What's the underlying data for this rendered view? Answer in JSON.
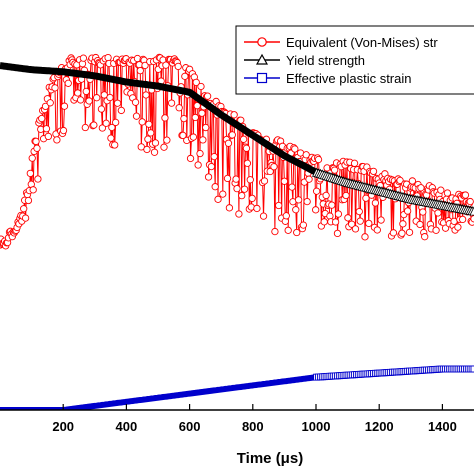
{
  "chart_data": {
    "type": "line",
    "xlabel": "Time (μs)",
    "xlim": [
      0,
      1500
    ],
    "x_ticks": [
      200,
      400,
      600,
      800,
      1000,
      1200,
      1400
    ],
    "ylim": [
      0,
      1
    ],
    "grid": false,
    "legend_position": "top-right",
    "series": [
      {
        "name": "Equivalent (Von-Mises) str",
        "color": "#ff0000",
        "marker": "circle",
        "upper_envelope": {
          "x": [
            0,
            40,
            80,
            120,
            160,
            200,
            220,
            260,
            300,
            350,
            400,
            450,
            500,
            550,
            600,
            650,
            700,
            750,
            800,
            850,
            900,
            950,
            1000,
            1050,
            1100,
            1150,
            1200,
            1250,
            1300,
            1350,
            1400,
            1450,
            1500
          ],
          "y": [
            0.42,
            0.44,
            0.52,
            0.7,
            0.8,
            0.84,
            0.86,
            0.86,
            0.86,
            0.86,
            0.86,
            0.86,
            0.86,
            0.86,
            0.84,
            0.78,
            0.74,
            0.72,
            0.68,
            0.66,
            0.66,
            0.63,
            0.62,
            0.6,
            0.61,
            0.6,
            0.58,
            0.57,
            0.56,
            0.55,
            0.54,
            0.53,
            0.52
          ]
        },
        "lower_envelope": {
          "x": [
            0,
            40,
            80,
            120,
            160,
            200,
            220,
            260,
            300,
            350,
            400,
            450,
            500,
            550,
            600,
            650,
            700,
            750,
            800,
            850,
            900,
            950,
            1000,
            1050,
            1100,
            1150,
            1200,
            1250,
            1300,
            1350,
            1400,
            1450,
            1500
          ],
          "y": [
            0.38,
            0.42,
            0.46,
            0.56,
            0.64,
            0.66,
            0.7,
            0.68,
            0.66,
            0.64,
            0.64,
            0.62,
            0.63,
            0.62,
            0.6,
            0.56,
            0.5,
            0.48,
            0.46,
            0.43,
            0.44,
            0.43,
            0.42,
            0.43,
            0.42,
            0.42,
            0.43,
            0.42,
            0.43,
            0.42,
            0.43,
            0.44,
            0.44
          ]
        }
      },
      {
        "name": "Yield strength",
        "color": "#000000",
        "marker": "triangle",
        "x": [
          0,
          100,
          200,
          300,
          400,
          500,
          600,
          700,
          800,
          900,
          1000,
          1100,
          1200,
          1300,
          1400,
          1500
        ],
        "y": [
          0.84,
          0.83,
          0.825,
          0.815,
          0.8,
          0.79,
          0.775,
          0.72,
          0.67,
          0.62,
          0.58,
          0.555,
          0.535,
          0.515,
          0.5,
          0.485
        ]
      },
      {
        "name": "Effective plastic strain",
        "color": "#0000cc",
        "marker": "square",
        "x": [
          0,
          100,
          200,
          300,
          400,
          500,
          600,
          700,
          800,
          900,
          1000,
          1100,
          1200,
          1300,
          1400,
          1500
        ],
        "y": [
          0.0,
          0.0,
          0.0,
          0.01,
          0.02,
          0.03,
          0.04,
          0.05,
          0.06,
          0.07,
          0.08,
          0.085,
          0.09,
          0.095,
          0.1,
          0.1
        ]
      }
    ]
  }
}
